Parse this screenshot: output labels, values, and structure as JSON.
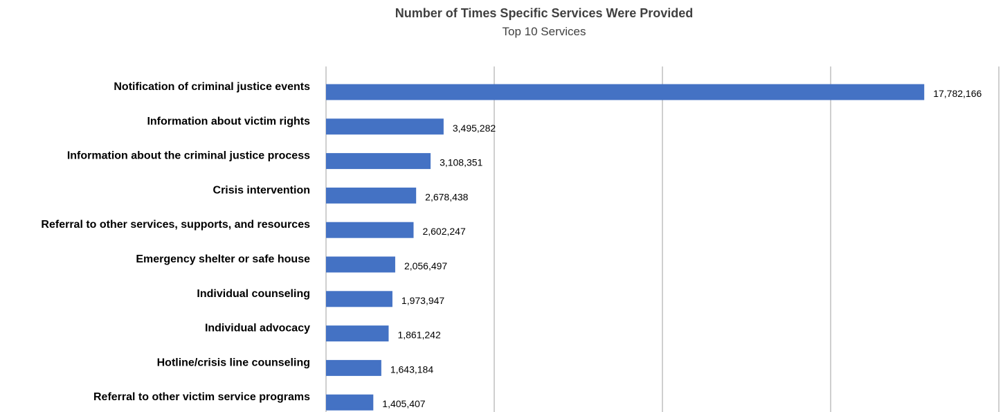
{
  "chart_data": {
    "type": "bar",
    "orientation": "horizontal",
    "title": "Number of Times Specific Services Were Provided",
    "subtitle": "Top 10 Services",
    "xlabel": "",
    "ylabel": "",
    "categories": [
      "Notification of criminal justice events",
      "Information about victim rights",
      "Information about the criminal justice process",
      "Crisis intervention",
      "Referral to other services, supports, and resources",
      "Emergency shelter or safe house",
      "Individual counseling",
      "Individual advocacy",
      "Hotline/crisis line counseling",
      "Referral to other victim service programs"
    ],
    "values": [
      17782166,
      3495282,
      3108351,
      2678438,
      2602247,
      2056497,
      1973947,
      1861242,
      1643184,
      1405407
    ],
    "value_labels": [
      "17,782,166",
      "3,495,282",
      "3,108,351",
      "2,678,438",
      "2,602,247",
      "2,056,497",
      "1,973,947",
      "1,861,242",
      "1,643,184",
      "1,405,407"
    ],
    "xlim": [
      0,
      20000000
    ],
    "gridlines": true,
    "grid_step": 5000000,
    "tick_labels_visible": false,
    "legend": "none",
    "bar_color": "#4472c4"
  }
}
